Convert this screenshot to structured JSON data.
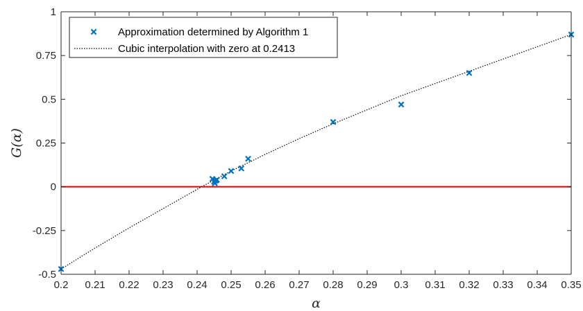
{
  "chart_data": {
    "type": "scatter",
    "xlabel": "α",
    "ylabel": "G(α)",
    "xlim": [
      0.2,
      0.35
    ],
    "ylim": [
      -0.5,
      1
    ],
    "grid": false,
    "legend_position": "top-left",
    "x_ticks": [
      0.2,
      0.21,
      0.22,
      0.23,
      0.24,
      0.25,
      0.26,
      0.27,
      0.28,
      0.29,
      0.3,
      0.31,
      0.32,
      0.33,
      0.34,
      0.35
    ],
    "x_tick_labels": [
      "0.2",
      "0.21",
      "0.22",
      "0.23",
      "0.24",
      "0.25",
      "0.26",
      "0.27",
      "0.28",
      "0.29",
      "0.3",
      "0.31",
      "0.32",
      "0.33",
      "0.34",
      "0.35"
    ],
    "y_ticks": [
      -0.5,
      -0.25,
      0,
      0.25,
      0.5,
      0.75,
      1
    ],
    "y_tick_labels": [
      "-0.5",
      "-0.25",
      "0",
      "0.25",
      "0.5",
      "0.75",
      "1"
    ],
    "reference_line": {
      "y": 0,
      "color": "#e00000"
    },
    "series": [
      {
        "name": "Approximation determined by Algorithm 1",
        "marker": "x",
        "color": "#0072bd",
        "points": [
          {
            "x": 0.2,
            "y": -0.47
          },
          {
            "x": 0.2445,
            "y": 0.045
          },
          {
            "x": 0.245,
            "y": 0.03
          },
          {
            "x": 0.2452,
            "y": 0.02
          },
          {
            "x": 0.2455,
            "y": 0.035
          },
          {
            "x": 0.2458,
            "y": 0.04
          },
          {
            "x": 0.248,
            "y": 0.06
          },
          {
            "x": 0.25,
            "y": 0.09
          },
          {
            "x": 0.253,
            "y": 0.105
          },
          {
            "x": 0.255,
            "y": 0.16
          },
          {
            "x": 0.28,
            "y": 0.37
          },
          {
            "x": 0.3,
            "y": 0.47
          },
          {
            "x": 0.32,
            "y": 0.65
          },
          {
            "x": 0.35,
            "y": 0.87
          }
        ]
      },
      {
        "name": "Cubic interpolation with zero at 0.2413",
        "type": "line",
        "style": "dotted",
        "color": "#000000",
        "x": [
          0.2,
          0.21,
          0.22,
          0.23,
          0.2413,
          0.25,
          0.26,
          0.27,
          0.28,
          0.29,
          0.3,
          0.31,
          0.32,
          0.33,
          0.34,
          0.35
        ],
        "y": [
          -0.47,
          -0.35,
          -0.235,
          -0.125,
          0.0,
          0.09,
          0.185,
          0.275,
          0.36,
          0.44,
          0.52,
          0.59,
          0.66,
          0.73,
          0.8,
          0.87
        ]
      }
    ]
  }
}
